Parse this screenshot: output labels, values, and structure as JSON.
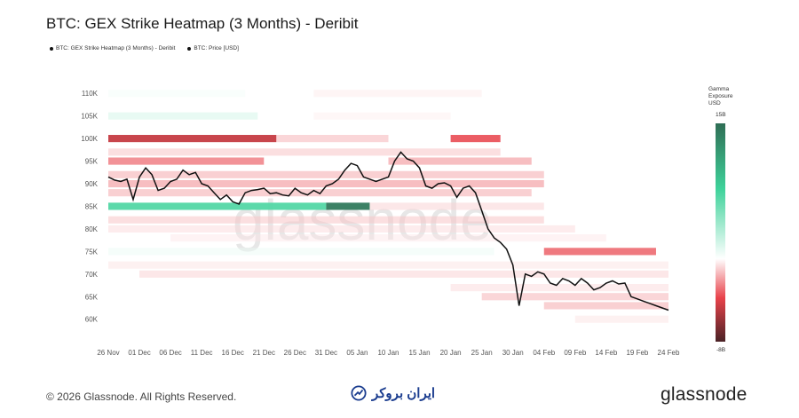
{
  "header": {
    "title": "BTC: GEX Strike Heatmap (3 Months) - Deribit",
    "legend": [
      "BTC: GEX Strike Heatmap (3 Months) - Deribit",
      "BTC: Price [USD]"
    ]
  },
  "colorbar": {
    "title_lines": [
      "Gamma",
      "Exposure",
      "USD"
    ],
    "max_label": "15B",
    "min_label": "-8B",
    "colors": {
      "positive": "#2f6e55",
      "mid": "#ffffff",
      "negative": "#4a2226",
      "pos_mid": "#3ed29a",
      "neg_mid": "#e8424a"
    }
  },
  "footer": {
    "copyright": "© 2026 Glassnode. All Rights Reserved.",
    "brand": "glassnode",
    "partner": "ایران بروکر"
  },
  "chart_data": {
    "type": "heatmap",
    "title": "BTC: GEX Strike Heatmap (3 Months) - Deribit",
    "x_tick_labels": [
      "26 Nov",
      "01 Dec",
      "06 Dec",
      "11 Dec",
      "16 Dec",
      "21 Dec",
      "26 Dec",
      "31 Dec",
      "05 Jan",
      "10 Jan",
      "15 Jan",
      "20 Jan",
      "25 Jan",
      "30 Jan",
      "04 Feb",
      "09 Feb",
      "14 Feb",
      "19 Feb",
      "24 Feb"
    ],
    "y_tick_labels": [
      "60K",
      "65K",
      "70K",
      "75K",
      "80K",
      "85K",
      "90K",
      "95K",
      "100K",
      "105K",
      "110K"
    ],
    "ylim": [
      57000,
      112000
    ],
    "xlim_days": [
      0,
      91
    ],
    "watermark": "glassnode",
    "price_series": {
      "name": "BTC: Price [USD]",
      "day": [
        0,
        1,
        2,
        3,
        4,
        5,
        6,
        7,
        8,
        9,
        10,
        11,
        12,
        13,
        14,
        15,
        16,
        17,
        18,
        19,
        20,
        21,
        22,
        23,
        24,
        25,
        26,
        27,
        28,
        29,
        30,
        31,
        32,
        33,
        34,
        35,
        36,
        37,
        38,
        39,
        40,
        41,
        42,
        43,
        44,
        45,
        46,
        47,
        48,
        49,
        50,
        51,
        52,
        53,
        54,
        55,
        56,
        57,
        58,
        59,
        60,
        61,
        62,
        63,
        64,
        65,
        66,
        67,
        68,
        69,
        70,
        71,
        72,
        73,
        74,
        75,
        76,
        77,
        78,
        79,
        80,
        81,
        82,
        83,
        84,
        85,
        86,
        87,
        88,
        89,
        90
      ],
      "price": [
        91500,
        90800,
        90500,
        91000,
        86500,
        91500,
        93500,
        92000,
        88500,
        89000,
        90500,
        91000,
        93000,
        92000,
        92500,
        90000,
        89500,
        88000,
        86500,
        87500,
        86000,
        85500,
        88000,
        88500,
        88700,
        89000,
        87800,
        88000,
        87500,
        87300,
        89000,
        88000,
        87500,
        88500,
        87800,
        89500,
        90000,
        91000,
        93000,
        94500,
        94000,
        91500,
        91000,
        90500,
        91000,
        91500,
        95000,
        97000,
        95500,
        95000,
        93500,
        89500,
        89000,
        90000,
        90200,
        89500,
        87000,
        89000,
        89500,
        88000,
        84000,
        80000,
        78000,
        77000,
        75500,
        72000,
        63000,
        70000,
        69500,
        70500,
        70000,
        68000,
        67500,
        69000,
        68500,
        67500,
        69000,
        68000,
        66500,
        67000,
        68000,
        68500,
        67800,
        68000,
        65000,
        64500,
        64000,
        63500,
        63000,
        62500,
        62000
      ]
    },
    "gex_bands": [
      {
        "strike": 110000,
        "gamma_b": 0.5,
        "from_day": 0,
        "to_day": 22
      },
      {
        "strike": 110000,
        "gamma_b": -0.6,
        "from_day": 33,
        "to_day": 60
      },
      {
        "strike": 105000,
        "gamma_b": 1.5,
        "from_day": 0,
        "to_day": 24
      },
      {
        "strike": 105000,
        "gamma_b": -0.5,
        "from_day": 33,
        "to_day": 55
      },
      {
        "strike": 100000,
        "gamma_b": -5.5,
        "from_day": 0,
        "to_day": 27
      },
      {
        "strike": 100000,
        "gamma_b": -1.8,
        "from_day": 27,
        "to_day": 45
      },
      {
        "strike": 100000,
        "gamma_b": -4.5,
        "from_day": 55,
        "to_day": 63
      },
      {
        "strike": 97000,
        "gamma_b": -1.5,
        "from_day": 0,
        "to_day": 63
      },
      {
        "strike": 95000,
        "gamma_b": -3.5,
        "from_day": 0,
        "to_day": 25
      },
      {
        "strike": 95000,
        "gamma_b": -2.5,
        "from_day": 45,
        "to_day": 68
      },
      {
        "strike": 92000,
        "gamma_b": -2.0,
        "from_day": 0,
        "to_day": 70
      },
      {
        "strike": 90000,
        "gamma_b": -2.5,
        "from_day": 0,
        "to_day": 70
      },
      {
        "strike": 88000,
        "gamma_b": -2.0,
        "from_day": 0,
        "to_day": 68
      },
      {
        "strike": 85000,
        "gamma_b": 6.0,
        "from_day": 0,
        "to_day": 35
      },
      {
        "strike": 85000,
        "gamma_b": 14.0,
        "from_day": 35,
        "to_day": 42
      },
      {
        "strike": 85000,
        "gamma_b": -1.2,
        "from_day": 42,
        "to_day": 70
      },
      {
        "strike": 82000,
        "gamma_b": -1.5,
        "from_day": 0,
        "to_day": 70
      },
      {
        "strike": 80000,
        "gamma_b": -1.0,
        "from_day": 0,
        "to_day": 75
      },
      {
        "strike": 78000,
        "gamma_b": -0.7,
        "from_day": 10,
        "to_day": 80
      },
      {
        "strike": 75000,
        "gamma_b": 0.8,
        "from_day": 0,
        "to_day": 62
      },
      {
        "strike": 75000,
        "gamma_b": -4.0,
        "from_day": 70,
        "to_day": 88
      },
      {
        "strike": 72000,
        "gamma_b": -0.8,
        "from_day": 0,
        "to_day": 90
      },
      {
        "strike": 70000,
        "gamma_b": -1.2,
        "from_day": 5,
        "to_day": 90
      },
      {
        "strike": 67000,
        "gamma_b": -1.0,
        "from_day": 55,
        "to_day": 90
      },
      {
        "strike": 65000,
        "gamma_b": -1.8,
        "from_day": 60,
        "to_day": 90
      },
      {
        "strike": 63000,
        "gamma_b": -2.0,
        "from_day": 70,
        "to_day": 90
      },
      {
        "strike": 60000,
        "gamma_b": -0.8,
        "from_day": 75,
        "to_day": 90
      }
    ]
  }
}
